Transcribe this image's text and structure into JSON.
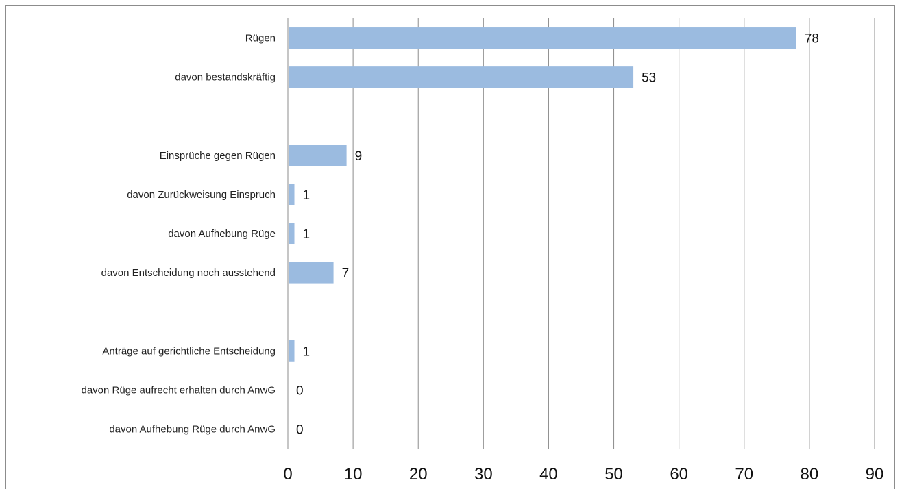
{
  "chart_data": {
    "type": "bar",
    "orientation": "horizontal",
    "categories": [
      "Rügen",
      "davon bestandskräftig",
      "",
      "Einsprüche gegen Rügen",
      "davon Zurückweisung Einspruch",
      "davon Aufhebung Rüge",
      "davon Entscheidung noch ausstehend",
      "",
      "Anträge auf gerichtliche Entscheidung",
      "davon Rüge aufrecht erhalten durch AnwG",
      "davon Aufhebung Rüge durch AnwG"
    ],
    "values": [
      78,
      53,
      null,
      9,
      1,
      1,
      7,
      null,
      1,
      0,
      0
    ],
    "value_labels": [
      "78",
      "53",
      "",
      "9",
      "1",
      "1",
      "7",
      "",
      "1",
      "0",
      "0"
    ],
    "xlim": [
      0,
      90
    ],
    "xticks": [
      "0",
      "10",
      "20",
      "30",
      "40",
      "50",
      "60",
      "70",
      "80",
      "90"
    ],
    "grid": "vertical",
    "legend": "none",
    "title": "",
    "xlabel": "",
    "ylabel": "",
    "colors": {
      "bar": "#9bbbe0",
      "grid": "#8c8c8c",
      "axis": "#8c8c8c",
      "border": "#8c8c8c"
    }
  }
}
